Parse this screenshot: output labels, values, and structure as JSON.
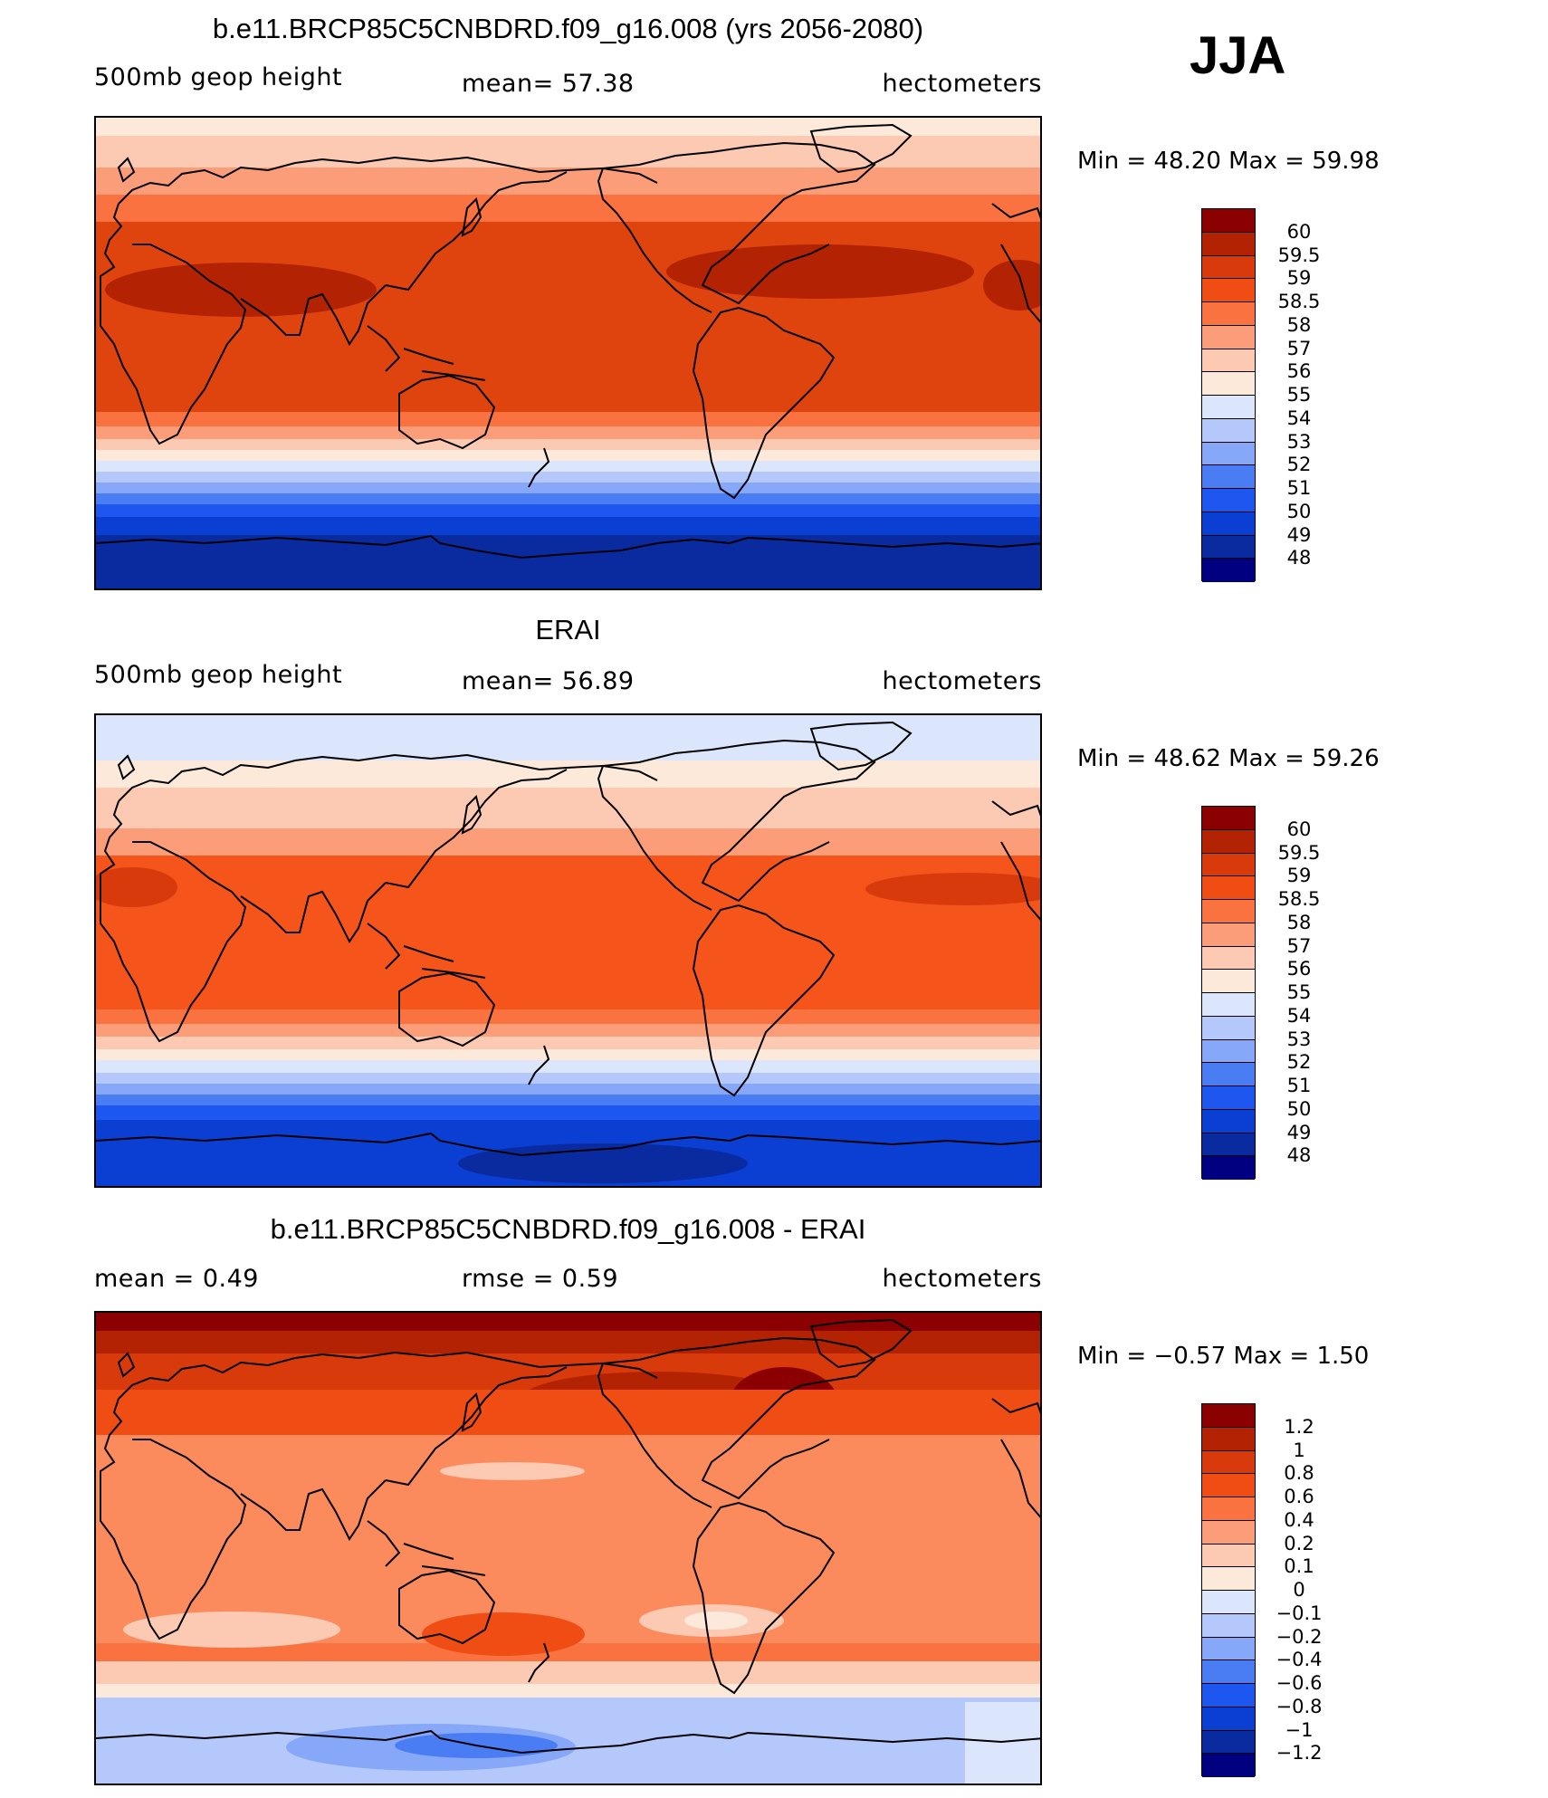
{
  "season": "JJA",
  "colors": {
    "warm_scale": [
      "#000080",
      "#0a2aa0",
      "#0b3fd3",
      "#1d57f0",
      "#4a7df4",
      "#87a8f8",
      "#b5c8fb",
      "#dbe6fc",
      "#fde9da",
      "#fcc9b2",
      "#fb9d79",
      "#f97240",
      "#f04d14",
      "#d93a0c",
      "#b32303",
      "#8b0000"
    ],
    "diff_scale": [
      "#000080",
      "#0a2aa0",
      "#0b3fd3",
      "#1d57f0",
      "#4a7df4",
      "#87a8f8",
      "#b5c8fb",
      "#dbe6fc",
      "#fde9da",
      "#fcc9b2",
      "#fb9d79",
      "#f97240",
      "#f04d14",
      "#d93a0c",
      "#b32303",
      "#8b0000"
    ]
  },
  "panels": [
    {
      "title": "b.e11.BRCP85C5CNBDRD.f09_g16.008 (yrs 2056-2080)",
      "left": "500mb geop height",
      "center": "mean=   57.38",
      "right": "hectometers",
      "minmax": "Min =   48.20  Max =   59.98",
      "colorbar_labels": [
        "60",
        "59.5",
        "59",
        "58.5",
        "58",
        "57",
        "56",
        "55",
        "54",
        "53",
        "52",
        "51",
        "50",
        "49",
        "48"
      ]
    },
    {
      "title": "ERAI",
      "left": "500mb geop height",
      "center": "mean=   56.89",
      "right": "hectometers",
      "minmax": "Min =   48.62  Max =   59.26",
      "colorbar_labels": [
        "60",
        "59.5",
        "59",
        "58.5",
        "58",
        "57",
        "56",
        "55",
        "54",
        "53",
        "52",
        "51",
        "50",
        "49",
        "48"
      ]
    },
    {
      "title": "b.e11.BRCP85C5CNBDRD.f09_g16.008 - ERAI",
      "left": "mean =     0.49",
      "center": "rmse =     0.59",
      "right": "hectometers",
      "minmax": "Min =   −0.57  Max =     1.50",
      "colorbar_labels": [
        "1.2",
        "1",
        "0.8",
        "0.6",
        "0.4",
        "0.2",
        "0.1",
        "0",
        "−0.1",
        "−0.2",
        "−0.4",
        "−0.6",
        "−0.8",
        "−1",
        "−1.2"
      ]
    }
  ]
}
